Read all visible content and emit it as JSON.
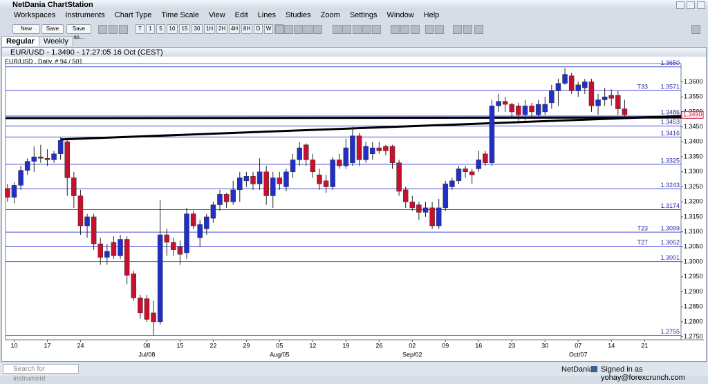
{
  "app": {
    "title": "NetDania ChartStation",
    "menu": [
      "Workspaces",
      "Instruments",
      "Chart Type",
      "Time Scale",
      "View",
      "Edit",
      "Lines",
      "Studies",
      "Zoom",
      "Settings",
      "Window",
      "Help"
    ],
    "buttons": [
      "New",
      "Save",
      "Save as..."
    ],
    "timeframes": [
      "T",
      "1",
      "5",
      "10",
      "15",
      "30",
      "1H",
      "2H",
      "4H",
      "8H",
      "D",
      "W",
      "M"
    ],
    "tabs": [
      "Regular",
      "Weekly"
    ],
    "search_placeholder": "Search for instrument",
    "status_brand": "NetDania",
    "status_user": "Signed in as yohay@forexcrunch.com"
  },
  "chart_data": {
    "type": "candlestick",
    "title": "EUR/USD - 1.3490 - 17:27:05 16 Oct (CEST)",
    "subtitle": "EUR/USD , Daily, # 94 / 501",
    "up_color": "#1f2fc8",
    "down_color": "#c8102e",
    "level_color": "#4a4ad6",
    "trend_color": "#000000",
    "xlim": [
      -0.3,
      101.5
    ],
    "ylim": [
      1.274,
      1.3661
    ],
    "xticks": [
      {
        "value": 1,
        "label": "10"
      },
      {
        "value": 6,
        "label": "17"
      },
      {
        "value": 11,
        "label": "24"
      },
      {
        "value": 21,
        "label": "08"
      },
      {
        "value": 26,
        "label": "15"
      },
      {
        "value": 31,
        "label": "22"
      },
      {
        "value": 36,
        "label": "29"
      },
      {
        "value": 41,
        "label": "05"
      },
      {
        "value": 46,
        "label": "12"
      },
      {
        "value": 51,
        "label": "19"
      },
      {
        "value": 56,
        "label": "26"
      },
      {
        "value": 61,
        "label": "02"
      },
      {
        "value": 66,
        "label": "09"
      },
      {
        "value": 71,
        "label": "16"
      },
      {
        "value": 76,
        "label": "23"
      },
      {
        "value": 81,
        "label": "30"
      },
      {
        "value": 86,
        "label": "07"
      },
      {
        "value": 91,
        "label": "14"
      },
      {
        "value": 96,
        "label": "21"
      }
    ],
    "x_month_labels": [
      {
        "value": 21,
        "label": "Jul/08"
      },
      {
        "value": 41,
        "label": "Aug/05"
      },
      {
        "value": 61,
        "label": "Sep/02"
      },
      {
        "value": 86,
        "label": "Oct/07"
      }
    ],
    "yticks": [
      {
        "value": 1.275,
        "label": "1.2750"
      },
      {
        "value": 1.28,
        "label": "1.2800"
      },
      {
        "value": 1.285,
        "label": "1.2850"
      },
      {
        "value": 1.29,
        "label": "1.2900"
      },
      {
        "value": 1.295,
        "label": "1.2950"
      },
      {
        "value": 1.3,
        "label": "1.3000"
      },
      {
        "value": 1.305,
        "label": "1.3050"
      },
      {
        "value": 1.31,
        "label": "1.3100"
      },
      {
        "value": 1.315,
        "label": "1.3150"
      },
      {
        "value": 1.32,
        "label": "1.3200"
      },
      {
        "value": 1.325,
        "label": "1.3250"
      },
      {
        "value": 1.33,
        "label": "1.3300"
      },
      {
        "value": 1.335,
        "label": "1.3350"
      },
      {
        "value": 1.34,
        "label": "1.3400"
      },
      {
        "value": 1.345,
        "label": "1.3450"
      },
      {
        "value": 1.35,
        "label": "1.3500"
      },
      {
        "value": 1.355,
        "label": "1.3550"
      },
      {
        "value": 1.36,
        "label": "1.3600"
      }
    ],
    "levels": [
      {
        "value": 1.365,
        "label": "1.3650"
      },
      {
        "value": 1.3571,
        "label": "1.3571",
        "tag": "T33"
      },
      {
        "value": 1.3486,
        "label": "1.3486"
      },
      {
        "value": 1.3453,
        "label": "1.3453"
      },
      {
        "value": 1.3416,
        "label": "1.3416"
      },
      {
        "value": 1.3325,
        "label": "1.3325"
      },
      {
        "value": 1.3243,
        "label": "1.3243"
      },
      {
        "value": 1.3174,
        "label": "1.3174"
      },
      {
        "value": 1.3099,
        "label": "1.3099",
        "tag": "T23"
      },
      {
        "value": 1.3052,
        "label": "1.3052",
        "tag": "T27"
      },
      {
        "value": 1.3001,
        "label": "1.3001"
      },
      {
        "value": 1.2755,
        "label": "1.2755"
      }
    ],
    "trend_lines": [
      {
        "x": [
          -0.3,
          101.5
        ],
        "y": [
          1.3479,
          1.3481
        ]
      },
      {
        "x": [
          8,
          101.5
        ],
        "y": [
          1.3408,
          1.3486
        ]
      }
    ],
    "last": {
      "value": 1.349,
      "label": "1.3490"
    },
    "candles": [
      [
        1.3245,
        1.326,
        1.32,
        1.3215
      ],
      [
        1.3215,
        1.3265,
        1.3195,
        1.3255
      ],
      [
        1.3255,
        1.332,
        1.324,
        1.3305
      ],
      [
        1.3305,
        1.3345,
        1.329,
        1.3335
      ],
      [
        1.3335,
        1.3385,
        1.33,
        1.335
      ],
      [
        1.335,
        1.339,
        1.333,
        1.3345
      ],
      [
        1.3345,
        1.3375,
        1.332,
        1.334
      ],
      [
        1.334,
        1.337,
        1.333,
        1.336
      ],
      [
        1.336,
        1.3415,
        1.334,
        1.3405
      ],
      [
        1.34,
        1.341,
        1.322,
        1.328
      ],
      [
        1.328,
        1.33,
        1.318,
        1.322
      ],
      [
        1.322,
        1.324,
        1.309,
        1.312
      ],
      [
        1.312,
        1.316,
        1.308,
        1.315
      ],
      [
        1.315,
        1.316,
        1.304,
        1.306
      ],
      [
        1.306,
        1.308,
        1.299,
        1.3015
      ],
      [
        1.3015,
        1.306,
        1.299,
        1.3035
      ],
      [
        1.3065,
        1.3085,
        1.301,
        1.302
      ],
      [
        1.302,
        1.309,
        1.301,
        1.3075
      ],
      [
        1.3075,
        1.3085,
        1.2925,
        1.2955
      ],
      [
        1.296,
        1.297,
        1.287,
        1.288
      ],
      [
        1.288,
        1.289,
        1.281,
        1.283
      ],
      [
        1.2877,
        1.289,
        1.28,
        1.2808
      ],
      [
        1.283,
        1.287,
        1.2755,
        1.28
      ],
      [
        1.28,
        1.3205,
        1.279,
        1.309
      ],
      [
        1.309,
        1.311,
        1.302,
        1.3065
      ],
      [
        1.3065,
        1.308,
        1.302,
        1.304
      ],
      [
        1.305,
        1.307,
        1.299,
        1.3025
      ],
      [
        1.303,
        1.318,
        1.301,
        1.316
      ],
      [
        1.316,
        1.317,
        1.311,
        1.312
      ],
      [
        1.308,
        1.314,
        1.305,
        1.3125
      ],
      [
        1.311,
        1.316,
        1.309,
        1.315
      ],
      [
        1.3145,
        1.32,
        1.313,
        1.319
      ],
      [
        1.319,
        1.324,
        1.317,
        1.3225
      ],
      [
        1.3225,
        1.323,
        1.318,
        1.32
      ],
      [
        1.32,
        1.327,
        1.319,
        1.324
      ],
      [
        1.324,
        1.33,
        1.32,
        1.328
      ],
      [
        1.327,
        1.33,
        1.325,
        1.3285
      ],
      [
        1.3285,
        1.33,
        1.324,
        1.326
      ],
      [
        1.326,
        1.3345,
        1.324,
        1.33
      ],
      [
        1.33,
        1.332,
        1.319,
        1.322
      ],
      [
        1.322,
        1.33,
        1.318,
        1.328
      ],
      [
        1.328,
        1.33,
        1.324,
        1.326
      ],
      [
        1.325,
        1.331,
        1.3235,
        1.33
      ],
      [
        1.33,
        1.336,
        1.328,
        1.334
      ],
      [
        1.334,
        1.34,
        1.332,
        1.338
      ],
      [
        1.339,
        1.3395,
        1.332,
        1.334
      ],
      [
        1.334,
        1.336,
        1.328,
        1.33
      ],
      [
        1.329,
        1.331,
        1.324,
        1.326
      ],
      [
        1.327,
        1.329,
        1.323,
        1.325
      ],
      [
        1.325,
        1.335,
        1.324,
        1.334
      ],
      [
        1.334,
        1.336,
        1.331,
        1.332
      ],
      [
        1.332,
        1.341,
        1.331,
        1.338
      ],
      [
        1.333,
        1.345,
        1.332,
        1.342
      ],
      [
        1.342,
        1.343,
        1.332,
        1.334
      ],
      [
        1.334,
        1.34,
        1.333,
        1.3385
      ],
      [
        1.336,
        1.34,
        1.334,
        1.338
      ],
      [
        1.338,
        1.34,
        1.336,
        1.337
      ],
      [
        1.3385,
        1.339,
        1.3355,
        1.337
      ],
      [
        1.3385,
        1.339,
        1.331,
        1.333
      ],
      [
        1.333,
        1.334,
        1.322,
        1.3235
      ],
      [
        1.324,
        1.325,
        1.318,
        1.32
      ],
      [
        1.32,
        1.322,
        1.317,
        1.318
      ],
      [
        1.319,
        1.32,
        1.314,
        1.3165
      ],
      [
        1.3165,
        1.32,
        1.315,
        1.318
      ],
      [
        1.318,
        1.32,
        1.311,
        1.312
      ],
      [
        1.312,
        1.321,
        1.311,
        1.318
      ],
      [
        1.318,
        1.327,
        1.317,
        1.326
      ],
      [
        1.325,
        1.328,
        1.324,
        1.327
      ],
      [
        1.327,
        1.332,
        1.326,
        1.331
      ],
      [
        1.331,
        1.332,
        1.328,
        1.33
      ],
      [
        1.33,
        1.331,
        1.326,
        1.329
      ],
      [
        1.331,
        1.337,
        1.33,
        1.334
      ],
      [
        1.336,
        1.337,
        1.332,
        1.333
      ],
      [
        1.333,
        1.354,
        1.332,
        1.352
      ],
      [
        1.352,
        1.356,
        1.35,
        1.3535
      ],
      [
        1.3535,
        1.355,
        1.35,
        1.3525
      ],
      [
        1.3525,
        1.353,
        1.348,
        1.35
      ],
      [
        1.352,
        1.353,
        1.347,
        1.349
      ],
      [
        1.349,
        1.354,
        1.347,
        1.352
      ],
      [
        1.352,
        1.353,
        1.348,
        1.35
      ],
      [
        1.349,
        1.354,
        1.348,
        1.3525
      ],
      [
        1.35,
        1.355,
        1.349,
        1.3525
      ],
      [
        1.353,
        1.359,
        1.351,
        1.357
      ],
      [
        1.357,
        1.361,
        1.352,
        1.3595
      ],
      [
        1.3595,
        1.3645,
        1.359,
        1.3625
      ],
      [
        1.362,
        1.363,
        1.356,
        1.357
      ],
      [
        1.357,
        1.36,
        1.355,
        1.359
      ],
      [
        1.358,
        1.361,
        1.356,
        1.36
      ],
      [
        1.36,
        1.361,
        1.35,
        1.352
      ],
      [
        1.352,
        1.356,
        1.349,
        1.354
      ],
      [
        1.354,
        1.358,
        1.352,
        1.355
      ],
      [
        1.3555,
        1.3575,
        1.352,
        1.3545
      ],
      [
        1.3555,
        1.357,
        1.349,
        1.351
      ],
      [
        1.351,
        1.354,
        1.348,
        1.349
      ]
    ]
  }
}
